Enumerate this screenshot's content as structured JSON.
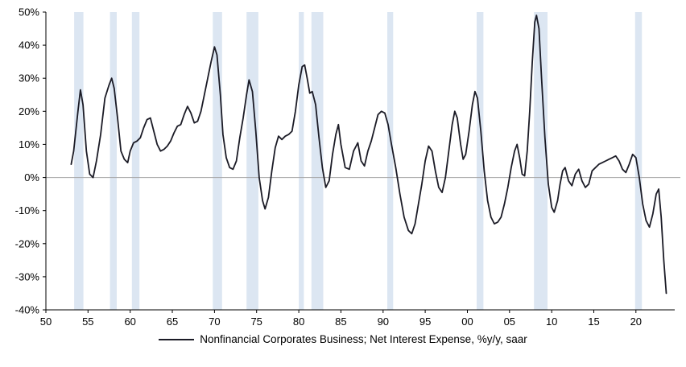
{
  "chart_data": {
    "type": "line",
    "title": "",
    "xlabel": "",
    "ylabel": "",
    "xlim": [
      1950,
      2024.6
    ],
    "ylim": [
      -40,
      50
    ],
    "x_ticks": [
      1950,
      1955,
      1960,
      1965,
      1970,
      1975,
      1980,
      1985,
      1990,
      1995,
      2000,
      2005,
      2010,
      2015,
      2020
    ],
    "x_tick_labels": [
      "50",
      "55",
      "60",
      "65",
      "70",
      "75",
      "80",
      "85",
      "90",
      "95",
      "00",
      "05",
      "10",
      "15",
      "20"
    ],
    "y_ticks": [
      50,
      40,
      30,
      20,
      10,
      0,
      -10,
      -20,
      -30,
      -40
    ],
    "y_tick_labels": [
      "50%",
      "40%",
      "30%",
      "20%",
      "10%",
      "0%",
      "-10%",
      "-20%",
      "-30%",
      "-40%"
    ],
    "grid": false,
    "zero_line": true,
    "zero_line_color": "#a6a6a6",
    "axis_color": "#000000",
    "band_color": "#dce6f2",
    "recession_bands": [
      [
        1953.35,
        1954.45
      ],
      [
        1957.6,
        1958.4
      ],
      [
        1960.2,
        1961.1
      ],
      [
        1969.8,
        1970.9
      ],
      [
        1973.8,
        1975.2
      ],
      [
        1980.0,
        1980.6
      ],
      [
        1981.5,
        1982.9
      ],
      [
        1990.5,
        1991.2
      ],
      [
        2001.1,
        2001.9
      ],
      [
        2007.9,
        2009.5
      ],
      [
        2019.9,
        2020.7
      ]
    ],
    "legend": [
      {
        "label": "Nonfinancial Corporates Business; Net Interest Expense, %y/y, saar",
        "color": "#1b1b26"
      }
    ],
    "legend_position": "bottom-center",
    "series": [
      {
        "name": "Nonfinancial Corporates Business; Net Interest Expense, %y/y, saar",
        "color": "#1b1b26",
        "points": [
          [
            1953.0,
            4
          ],
          [
            1953.3,
            8
          ],
          [
            1953.8,
            20
          ],
          [
            1954.1,
            26.5
          ],
          [
            1954.4,
            22
          ],
          [
            1954.8,
            8
          ],
          [
            1955.2,
            1
          ],
          [
            1955.6,
            0
          ],
          [
            1956.0,
            5
          ],
          [
            1956.5,
            13
          ],
          [
            1957.0,
            24
          ],
          [
            1957.5,
            28
          ],
          [
            1957.8,
            30
          ],
          [
            1958.1,
            27
          ],
          [
            1958.5,
            18
          ],
          [
            1958.9,
            8
          ],
          [
            1959.3,
            5.5
          ],
          [
            1959.7,
            4.5
          ],
          [
            1960.0,
            8
          ],
          [
            1960.4,
            10.5
          ],
          [
            1960.8,
            11
          ],
          [
            1961.2,
            12
          ],
          [
            1961.6,
            15
          ],
          [
            1962.0,
            17.5
          ],
          [
            1962.4,
            18
          ],
          [
            1962.8,
            14
          ],
          [
            1963.2,
            10
          ],
          [
            1963.6,
            8
          ],
          [
            1964.0,
            8.5
          ],
          [
            1964.4,
            9.5
          ],
          [
            1964.8,
            11
          ],
          [
            1965.2,
            13.5
          ],
          [
            1965.6,
            15.5
          ],
          [
            1966.0,
            16
          ],
          [
            1966.4,
            19
          ],
          [
            1966.8,
            21.5
          ],
          [
            1967.2,
            19.5
          ],
          [
            1967.6,
            16.5
          ],
          [
            1968.0,
            17
          ],
          [
            1968.4,
            20
          ],
          [
            1968.8,
            25
          ],
          [
            1969.2,
            30
          ],
          [
            1969.6,
            35
          ],
          [
            1970.0,
            39.5
          ],
          [
            1970.3,
            37
          ],
          [
            1970.7,
            25
          ],
          [
            1971.0,
            13
          ],
          [
            1971.4,
            6
          ],
          [
            1971.8,
            3
          ],
          [
            1972.2,
            2.5
          ],
          [
            1972.6,
            5
          ],
          [
            1973.0,
            12
          ],
          [
            1973.4,
            18
          ],
          [
            1973.8,
            25
          ],
          [
            1974.1,
            29.5
          ],
          [
            1974.5,
            26
          ],
          [
            1974.9,
            14
          ],
          [
            1975.3,
            0
          ],
          [
            1975.7,
            -7
          ],
          [
            1976.0,
            -9.5
          ],
          [
            1976.4,
            -6
          ],
          [
            1976.8,
            2
          ],
          [
            1977.2,
            9
          ],
          [
            1977.6,
            12.5
          ],
          [
            1978.0,
            11.5
          ],
          [
            1978.4,
            12.5
          ],
          [
            1978.8,
            13
          ],
          [
            1979.2,
            14
          ],
          [
            1979.6,
            20
          ],
          [
            1980.0,
            28
          ],
          [
            1980.4,
            33.5
          ],
          [
            1980.7,
            34
          ],
          [
            1981.0,
            30
          ],
          [
            1981.3,
            25.5
          ],
          [
            1981.6,
            26
          ],
          [
            1982.0,
            22
          ],
          [
            1982.4,
            12
          ],
          [
            1982.8,
            3
          ],
          [
            1983.2,
            -3
          ],
          [
            1983.6,
            -1
          ],
          [
            1984.0,
            7
          ],
          [
            1984.4,
            13
          ],
          [
            1984.7,
            16
          ],
          [
            1985.0,
            10
          ],
          [
            1985.5,
            3
          ],
          [
            1986.0,
            2.5
          ],
          [
            1986.5,
            8
          ],
          [
            1987.0,
            10.5
          ],
          [
            1987.4,
            5
          ],
          [
            1987.8,
            3.5
          ],
          [
            1988.2,
            8
          ],
          [
            1988.6,
            11
          ],
          [
            1989.0,
            15
          ],
          [
            1989.4,
            19
          ],
          [
            1989.8,
            20
          ],
          [
            1990.2,
            19.5
          ],
          [
            1990.6,
            16
          ],
          [
            1991.0,
            10
          ],
          [
            1991.5,
            3
          ],
          [
            1992.0,
            -5
          ],
          [
            1992.5,
            -12
          ],
          [
            1993.0,
            -16
          ],
          [
            1993.4,
            -17
          ],
          [
            1993.8,
            -14
          ],
          [
            1994.2,
            -8
          ],
          [
            1994.6,
            -2
          ],
          [
            1995.0,
            5
          ],
          [
            1995.4,
            9.5
          ],
          [
            1995.8,
            8
          ],
          [
            1996.2,
            2
          ],
          [
            1996.6,
            -3
          ],
          [
            1997.0,
            -4.5
          ],
          [
            1997.4,
            0
          ],
          [
            1997.8,
            8
          ],
          [
            1998.2,
            16
          ],
          [
            1998.5,
            20
          ],
          [
            1998.8,
            18
          ],
          [
            1999.2,
            10
          ],
          [
            1999.5,
            5.5
          ],
          [
            1999.8,
            7
          ],
          [
            2000.2,
            14
          ],
          [
            2000.6,
            22
          ],
          [
            2000.9,
            26
          ],
          [
            2001.2,
            24
          ],
          [
            2001.6,
            14
          ],
          [
            2002.0,
            2
          ],
          [
            2002.4,
            -7
          ],
          [
            2002.8,
            -12
          ],
          [
            2003.2,
            -14
          ],
          [
            2003.6,
            -13.5
          ],
          [
            2004.0,
            -12
          ],
          [
            2004.4,
            -8
          ],
          [
            2004.8,
            -3
          ],
          [
            2005.2,
            3
          ],
          [
            2005.6,
            8
          ],
          [
            2005.9,
            10
          ],
          [
            2006.2,
            6
          ],
          [
            2006.5,
            1
          ],
          [
            2006.8,
            0.5
          ],
          [
            2007.1,
            8
          ],
          [
            2007.4,
            20
          ],
          [
            2007.7,
            35
          ],
          [
            2008.0,
            47
          ],
          [
            2008.2,
            49
          ],
          [
            2008.5,
            45
          ],
          [
            2008.8,
            30
          ],
          [
            2009.2,
            12
          ],
          [
            2009.6,
            -2
          ],
          [
            2010.0,
            -9
          ],
          [
            2010.3,
            -10.5
          ],
          [
            2010.7,
            -7
          ],
          [
            2011.0,
            -2
          ],
          [
            2011.3,
            2
          ],
          [
            2011.6,
            3
          ],
          [
            2012.0,
            -1
          ],
          [
            2012.4,
            -2.5
          ],
          [
            2012.8,
            1
          ],
          [
            2013.2,
            2.5
          ],
          [
            2013.6,
            -1
          ],
          [
            2014.0,
            -3
          ],
          [
            2014.4,
            -2
          ],
          [
            2014.8,
            2
          ],
          [
            2015.2,
            3
          ],
          [
            2015.6,
            4
          ],
          [
            2016.0,
            4.5
          ],
          [
            2016.4,
            5
          ],
          [
            2016.8,
            5.5
          ],
          [
            2017.2,
            6
          ],
          [
            2017.6,
            6.5
          ],
          [
            2018.0,
            5
          ],
          [
            2018.4,
            2.5
          ],
          [
            2018.8,
            1.5
          ],
          [
            2019.2,
            4
          ],
          [
            2019.6,
            7
          ],
          [
            2020.0,
            6
          ],
          [
            2020.4,
            0
          ],
          [
            2020.8,
            -8
          ],
          [
            2021.2,
            -13
          ],
          [
            2021.6,
            -15
          ],
          [
            2022.0,
            -11
          ],
          [
            2022.4,
            -5
          ],
          [
            2022.7,
            -3.5
          ],
          [
            2023.0,
            -12
          ],
          [
            2023.3,
            -25
          ],
          [
            2023.6,
            -35
          ]
        ]
      }
    ]
  }
}
